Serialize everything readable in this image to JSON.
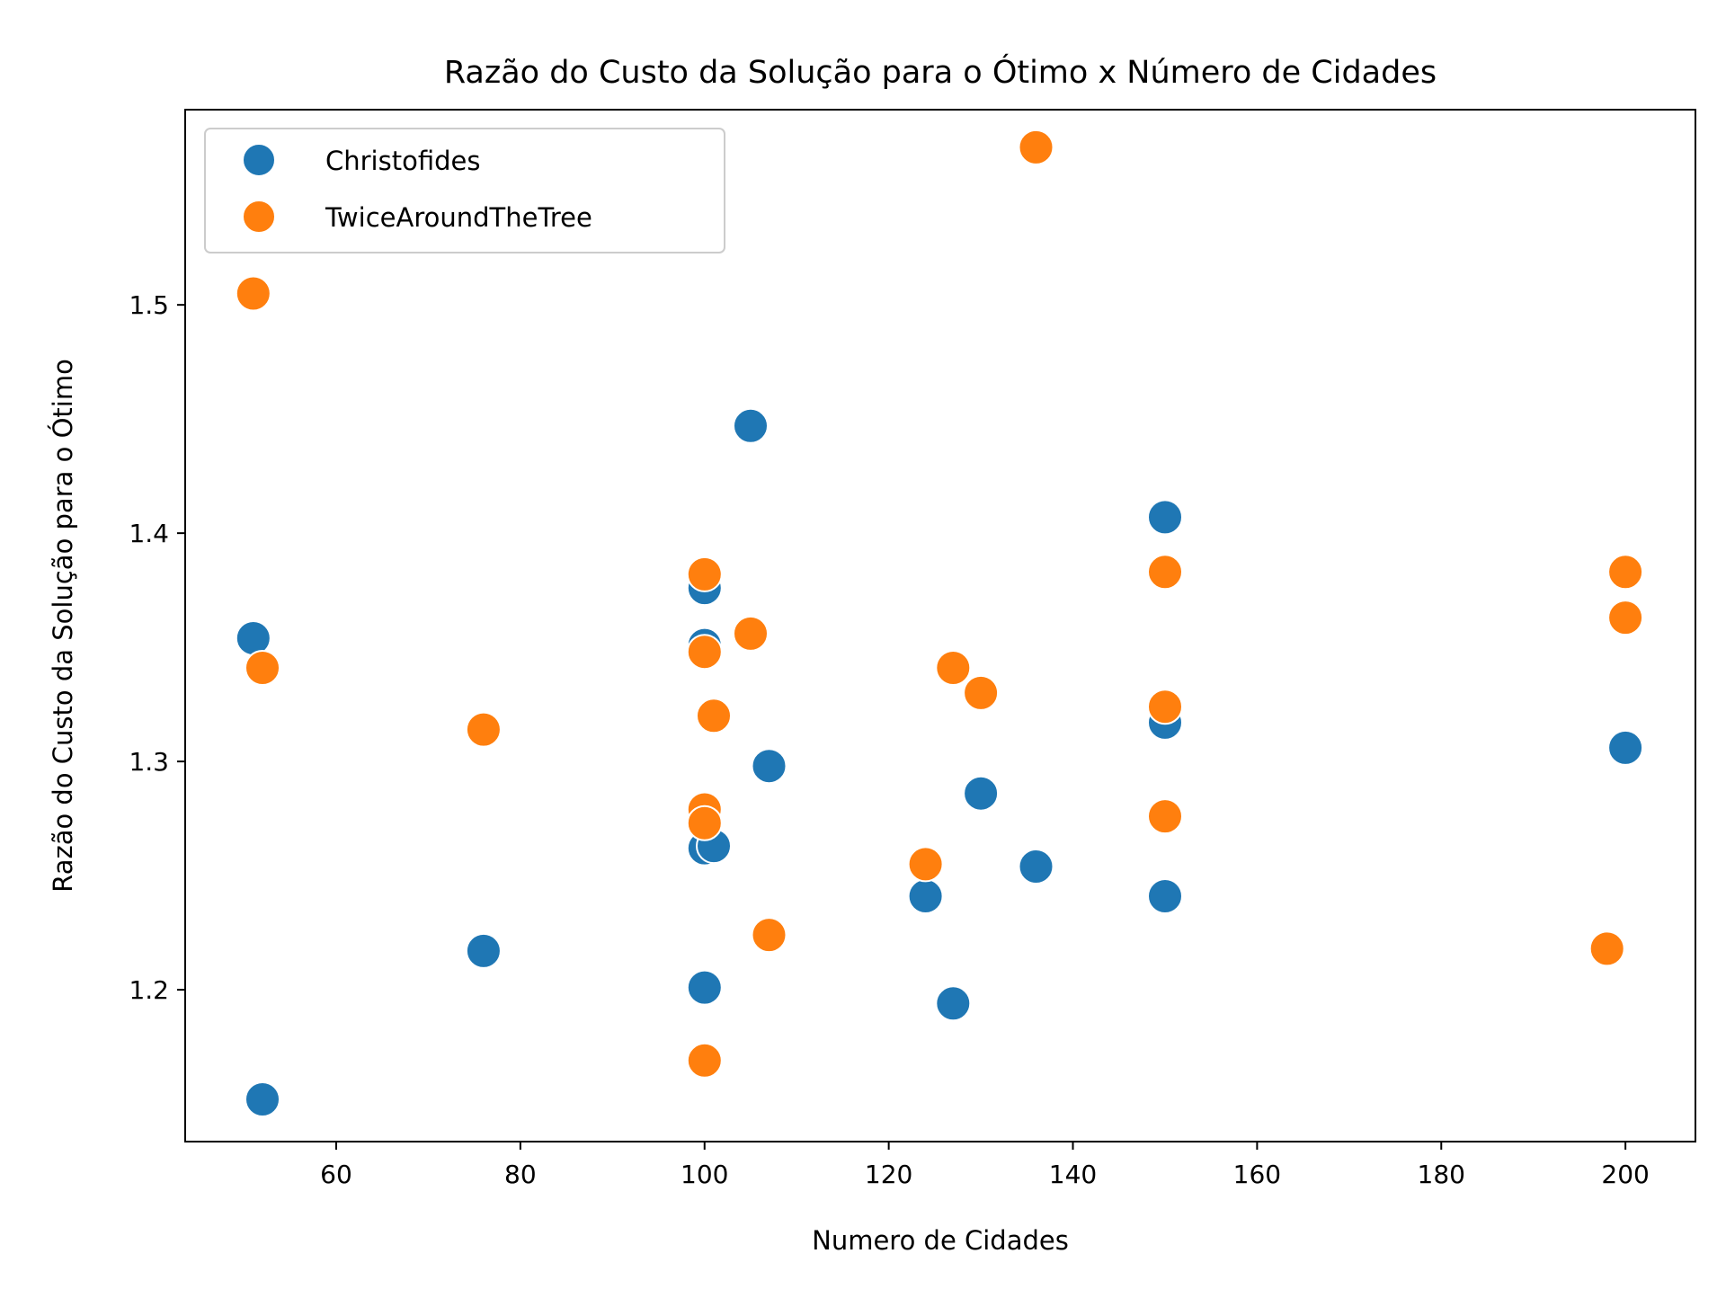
{
  "chart_data": {
    "type": "scatter",
    "title": "Razão do Custo da Solução para o Ótimo x Número de Cidades",
    "xlabel": "Numero de Cidades",
    "ylabel": "Razão do Custo da Solução para o Ótimo",
    "xlim": [
      43.6,
      207.6
    ],
    "ylim": [
      1.1335,
      1.5855
    ],
    "xticks": [
      60,
      80,
      100,
      120,
      140,
      160,
      180,
      200
    ],
    "yticks": [
      1.2,
      1.3,
      1.4,
      1.5
    ],
    "xtick_labels": [
      "60",
      "80",
      "100",
      "120",
      "140",
      "160",
      "180",
      "200"
    ],
    "ytick_labels": [
      "1.2",
      "1.3",
      "1.4",
      "1.5"
    ],
    "grid": false,
    "legend_position": "top-left",
    "series": [
      {
        "name": "Christofides",
        "color": "#1f77b4",
        "points": [
          {
            "x": 51,
            "y": 1.354
          },
          {
            "x": 52,
            "y": 1.152
          },
          {
            "x": 76,
            "y": 1.217
          },
          {
            "x": 100,
            "y": 1.376
          },
          {
            "x": 100,
            "y": 1.351
          },
          {
            "x": 100,
            "y": 1.262
          },
          {
            "x": 101,
            "y": 1.263
          },
          {
            "x": 100,
            "y": 1.201
          },
          {
            "x": 105,
            "y": 1.447
          },
          {
            "x": 107,
            "y": 1.298
          },
          {
            "x": 124,
            "y": 1.241
          },
          {
            "x": 127,
            "y": 1.194
          },
          {
            "x": 130,
            "y": 1.286
          },
          {
            "x": 136,
            "y": 1.254
          },
          {
            "x": 150,
            "y": 1.407
          },
          {
            "x": 150,
            "y": 1.317
          },
          {
            "x": 150,
            "y": 1.241
          },
          {
            "x": 200,
            "y": 1.306
          }
        ]
      },
      {
        "name": "TwiceAroundTheTree",
        "color": "#ff7f0e",
        "points": [
          {
            "x": 51,
            "y": 1.505
          },
          {
            "x": 52,
            "y": 1.341
          },
          {
            "x": 76,
            "y": 1.314
          },
          {
            "x": 100,
            "y": 1.382
          },
          {
            "x": 100,
            "y": 1.348
          },
          {
            "x": 101,
            "y": 1.32
          },
          {
            "x": 100,
            "y": 1.279
          },
          {
            "x": 100,
            "y": 1.273
          },
          {
            "x": 100,
            "y": 1.169
          },
          {
            "x": 105,
            "y": 1.356
          },
          {
            "x": 107,
            "y": 1.224
          },
          {
            "x": 124,
            "y": 1.255
          },
          {
            "x": 127,
            "y": 1.341
          },
          {
            "x": 130,
            "y": 1.33
          },
          {
            "x": 136,
            "y": 1.569
          },
          {
            "x": 150,
            "y": 1.383
          },
          {
            "x": 150,
            "y": 1.324
          },
          {
            "x": 150,
            "y": 1.276
          },
          {
            "x": 198,
            "y": 1.218
          },
          {
            "x": 200,
            "y": 1.383
          },
          {
            "x": 200,
            "y": 1.363
          }
        ]
      }
    ]
  }
}
